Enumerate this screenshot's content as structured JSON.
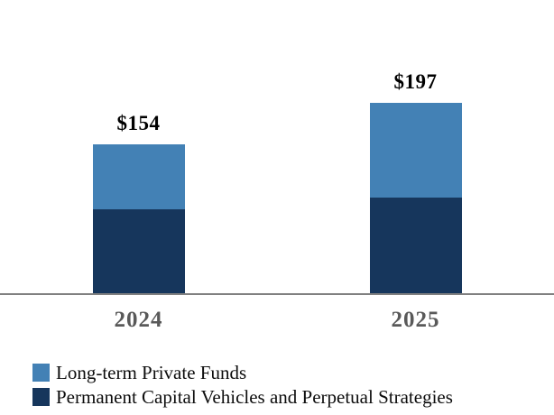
{
  "chart_data": {
    "type": "bar",
    "stacked": true,
    "title": "",
    "categories": [
      "2024",
      "2025"
    ],
    "series": [
      {
        "name": "Long-term Private Funds",
        "color": "#4381B5",
        "values": [
          67,
          97
        ]
      },
      {
        "name": "Permanent Capital Vehicles and Perpetual Strategies",
        "color": "#16365C",
        "values": [
          87,
          100
        ]
      }
    ],
    "totals": [
      154,
      197
    ],
    "total_labels": [
      "$154",
      "$197"
    ],
    "legend_position": "bottom-left",
    "grid": false,
    "y_axis_visible": false,
    "baseline_color": "#808080",
    "category_label_color": "#595959",
    "value_label_color": "#000000",
    "background_color": "#FFFFFF"
  }
}
